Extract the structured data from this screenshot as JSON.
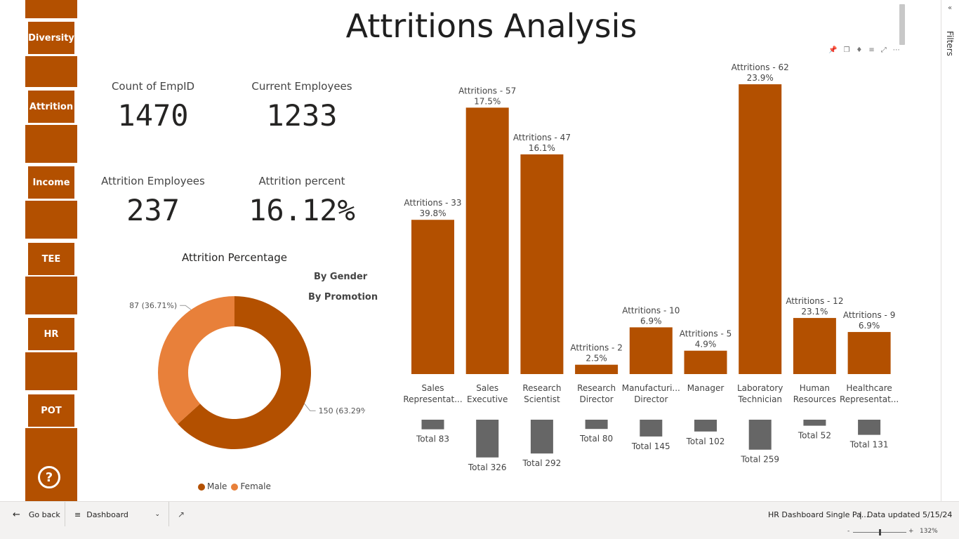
{
  "header": {
    "title": "Attritions Analysis"
  },
  "sidebar": {
    "items": [
      {
        "label": "Diversity"
      },
      {
        "label": "Attrition"
      },
      {
        "label": "Income"
      },
      {
        "label": "TEE"
      },
      {
        "label": "HR"
      },
      {
        "label": "POT"
      }
    ],
    "help_label": "?"
  },
  "kpis": [
    {
      "label": "Count of EmpID",
      "value": "1470"
    },
    {
      "label": "Current Employees",
      "value": "1233"
    },
    {
      "label": "Attrition Employees",
      "value": "237"
    },
    {
      "label": "Attrition percent",
      "value": "16.12%"
    }
  ],
  "donut": {
    "title": "Attrition Percentage",
    "toggles": [
      "By Gender",
      "By Promotion"
    ],
    "legend": [
      {
        "label": "Male",
        "color": "#b35000"
      },
      {
        "label": "Female",
        "color": "#e8803a"
      }
    ]
  },
  "chart_data": [
    {
      "type": "pie",
      "title": "Attrition Percentage",
      "slices": [
        {
          "label": "Male",
          "value": 150,
          "percent": 63.29,
          "data_label": "150 (63.29%)",
          "color": "#b35000"
        },
        {
          "label": "Female",
          "value": 87,
          "percent": 36.71,
          "data_label": "87 (36.71%)",
          "color": "#e8803a"
        }
      ],
      "legend_position": "bottom",
      "donut": true
    },
    {
      "type": "bar",
      "categories": [
        "Sales Representat...",
        "Sales Executive",
        "Research Scientist",
        "Research Director",
        "Manufacturi... Director",
        "Manager",
        "Laboratory Technician",
        "Human Resources",
        "Healthcare Representat..."
      ],
      "series": [
        {
          "values": [
            33,
            57,
            47,
            2,
            10,
            5,
            62,
            12,
            9
          ],
          "percents": [
            "39.8%",
            "17.5%",
            "16.1%",
            "2.5%",
            "6.9%",
            "4.9%",
            "23.9%",
            "23.1%",
            "6.9%"
          ],
          "color": "#b35000"
        },
        {
          "values": [
            83,
            326,
            292,
            80,
            145,
            102,
            259,
            52,
            131
          ],
          "color": "#666666"
        }
      ],
      "attrition_labels": [
        "Attritions - 33",
        "Attritions - 57",
        "Attritions - 47",
        "Attritions - 2",
        "Attritions - 10",
        "Attritions - 5",
        "Attritions - 62",
        "Attritions - 12",
        "Attritions - 9"
      ],
      "total_labels": [
        "Total 83",
        "Total 326",
        "Total 292",
        "Total 80",
        "Total 145",
        "Total 102",
        "Total 259",
        "Total 52",
        "Total 131"
      ]
    }
  ],
  "filters": {
    "label": "Filters",
    "collapse_icon": "chevron-left-icon"
  },
  "bottom_bar": {
    "go_back": "Go back",
    "page_selector": "Dashboard",
    "report_name": "HR Dashboard Single Pa...",
    "data_updated": "Data updated 5/15/24",
    "zoom_minus": "-",
    "zoom_plus": "+",
    "zoom_level": "132%"
  },
  "colors": {
    "accent": "#b35000",
    "secondary": "#e8803a",
    "total": "#666666"
  }
}
